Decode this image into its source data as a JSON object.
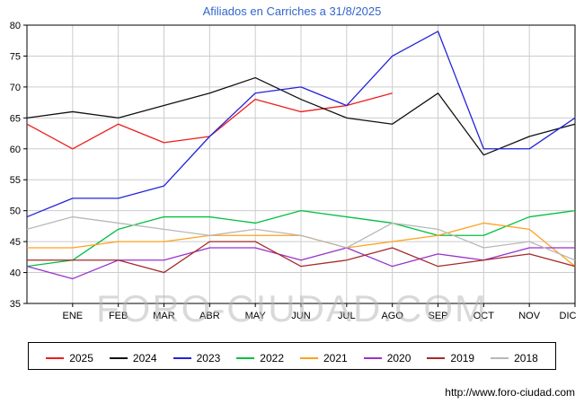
{
  "title": "Afiliados en Carriches a 31/8/2025",
  "watermark": "FORO-CIUDAD.COM",
  "footer": {
    "url": "http://www.foro-ciudad.com"
  },
  "chart_data": {
    "type": "line",
    "title": "Afiliados en Carriches a 31/8/2025",
    "categories": [
      "ENE",
      "FEB",
      "MAR",
      "ABR",
      "MAY",
      "JUN",
      "JUL",
      "AGO",
      "SEP",
      "OCT",
      "NOV",
      "DIC"
    ],
    "ylim": [
      35,
      80
    ],
    "ytick_step": 5,
    "ytick_labels": [
      "35",
      "40",
      "45",
      "50",
      "55",
      "60",
      "65",
      "70",
      "75",
      "80"
    ],
    "grid": true,
    "legend_position": "bottom",
    "colors": {
      "grid": "#cccccc",
      "axis": "#000000",
      "title": "#3366cc"
    },
    "series": [
      {
        "name": "2025",
        "color": "#ee1c1c",
        "start": 64,
        "values": [
          60,
          64,
          61,
          62,
          68,
          66,
          67,
          69,
          null,
          null,
          null,
          null
        ]
      },
      {
        "name": "2024",
        "color": "#111111",
        "start": 65,
        "values": [
          66,
          65,
          67,
          69,
          71.5,
          68,
          65,
          64,
          69,
          59,
          62,
          64
        ]
      },
      {
        "name": "2023",
        "color": "#2424d8",
        "start": 49,
        "values": [
          52,
          52,
          54,
          62,
          69,
          70,
          67,
          75,
          79,
          60,
          60,
          65
        ]
      },
      {
        "name": "2022",
        "color": "#00c040",
        "start": 41,
        "values": [
          42,
          47,
          49,
          49,
          48,
          50,
          49,
          48,
          46,
          46,
          49,
          50
        ]
      },
      {
        "name": "2021",
        "color": "#ffa11c",
        "start": 44,
        "values": [
          44,
          45,
          45,
          46,
          46,
          46,
          44,
          45,
          46,
          48,
          47,
          41
        ]
      },
      {
        "name": "2020",
        "color": "#9932cc",
        "start": 41,
        "values": [
          39,
          42,
          42,
          44,
          44,
          42,
          44,
          41,
          43,
          42,
          44,
          44
        ]
      },
      {
        "name": "2019",
        "color": "#a52a2a",
        "start": 42,
        "values": [
          42,
          42,
          40,
          45,
          45,
          41,
          42,
          44,
          41,
          42,
          43,
          41
        ]
      },
      {
        "name": "2018",
        "color": "#b8b8b8",
        "start": 47,
        "values": [
          49,
          48,
          47,
          46,
          47,
          46,
          44,
          48,
          47,
          44,
          45,
          42
        ]
      }
    ]
  }
}
